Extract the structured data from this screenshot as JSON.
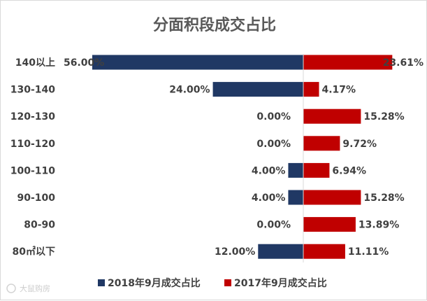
{
  "chart_data": {
    "type": "bar",
    "orientation": "horizontal-diverging",
    "title": "分面积段成交占比",
    "categories": [
      "140以上",
      "130-140",
      "120-130",
      "110-120",
      "100-110",
      "90-100",
      "80-90",
      "80㎡以下"
    ],
    "series": [
      {
        "name": "2018年9月成交占比",
        "color": "#203864",
        "values": [
          56.0,
          24.0,
          0.0,
          0.0,
          4.0,
          4.0,
          0.0,
          12.0
        ],
        "labels": [
          "56.00%",
          "24.00%",
          "0.00%",
          "0.00%",
          "4.00%",
          "4.00%",
          "0.00%",
          "12.00%"
        ]
      },
      {
        "name": "2017年9月成交占比",
        "color": "#c00000",
        "values": [
          23.61,
          4.17,
          15.28,
          9.72,
          6.94,
          15.28,
          13.89,
          11.11
        ],
        "labels": [
          "23.61%",
          "4.17%",
          "15.28%",
          "9.72%",
          "6.94%",
          "15.28%",
          "13.89%",
          "11.11%"
        ]
      }
    ],
    "legend_position": "bottom",
    "grid": false
  },
  "watermark": "大鼠购房"
}
